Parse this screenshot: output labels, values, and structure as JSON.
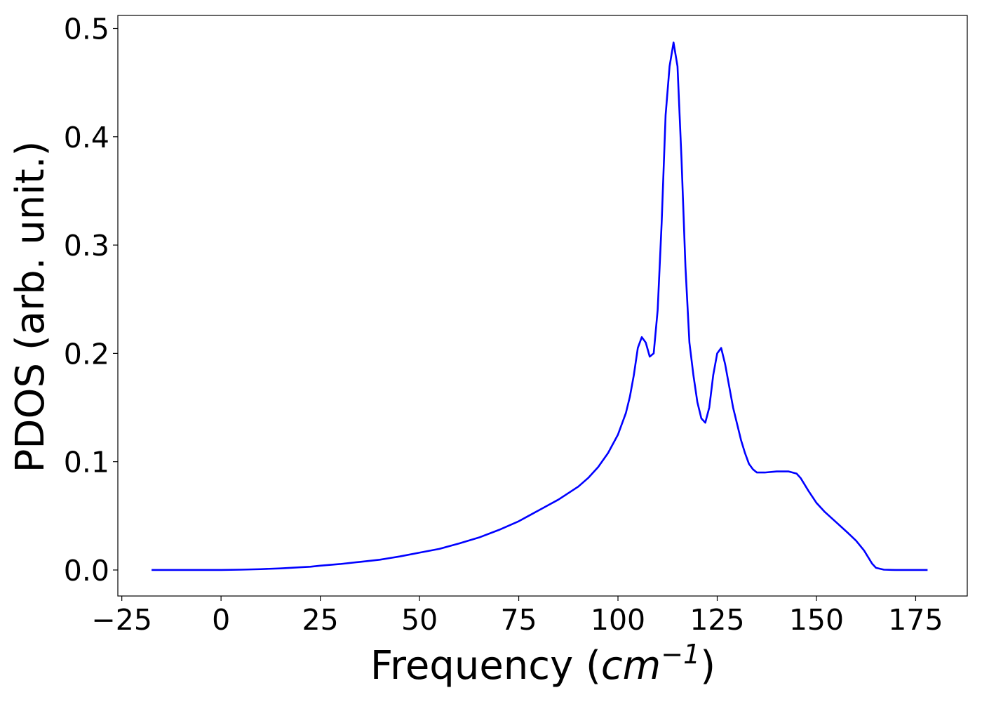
{
  "chart_data": {
    "type": "line",
    "title": "",
    "xlabel_parts": {
      "prefix": "Frequency (",
      "unit_base": "cm",
      "unit_exp": "−1",
      "suffix": ")"
    },
    "ylabel": "PDOS (arb. unit.)",
    "xlim": [
      -26,
      188
    ],
    "ylim": [
      -0.024,
      0.512
    ],
    "xticks": [
      {
        "value": -25,
        "label": "−25"
      },
      {
        "value": 0,
        "label": "0"
      },
      {
        "value": 25,
        "label": "25"
      },
      {
        "value": 50,
        "label": "50"
      },
      {
        "value": 75,
        "label": "75"
      },
      {
        "value": 100,
        "label": "100"
      },
      {
        "value": 125,
        "label": "125"
      },
      {
        "value": 150,
        "label": "150"
      },
      {
        "value": 175,
        "label": "175"
      }
    ],
    "yticks": [
      {
        "value": 0.0,
        "label": "0.0"
      },
      {
        "value": 0.1,
        "label": "0.1"
      },
      {
        "value": 0.2,
        "label": "0.2"
      },
      {
        "value": 0.3,
        "label": "0.3"
      },
      {
        "value": 0.4,
        "label": "0.4"
      },
      {
        "value": 0.5,
        "label": "0.5"
      }
    ],
    "grid": false,
    "series": [
      {
        "color": "#0000ff",
        "x": [
          -17.5,
          0,
          5,
          10,
          15,
          20,
          22.5,
          25,
          30,
          35,
          40,
          42.5,
          45,
          50,
          55,
          57.5,
          60,
          65,
          70,
          75,
          77.5,
          80,
          82.5,
          85,
          90,
          92.5,
          95,
          97.5,
          100,
          102,
          103,
          104,
          105,
          106,
          107,
          108,
          109,
          110,
          111,
          112,
          113,
          114,
          115,
          116,
          117,
          118,
          119,
          120,
          121,
          122,
          123,
          124,
          125,
          126,
          127,
          128,
          129,
          130,
          131,
          132,
          133,
          134,
          135,
          136,
          137,
          140,
          143,
          145,
          146,
          148,
          150,
          152,
          155,
          158,
          160,
          162,
          163,
          164,
          165,
          167,
          170,
          178
        ],
        "y": [
          0.0,
          0.0,
          0.0003,
          0.0008,
          0.0015,
          0.0025,
          0.003,
          0.004,
          0.0055,
          0.0075,
          0.0095,
          0.011,
          0.0125,
          0.016,
          0.0195,
          0.022,
          0.0245,
          0.03,
          0.037,
          0.045,
          0.05,
          0.055,
          0.06,
          0.065,
          0.077,
          0.085,
          0.095,
          0.108,
          0.125,
          0.145,
          0.16,
          0.18,
          0.205,
          0.215,
          0.21,
          0.197,
          0.2,
          0.24,
          0.32,
          0.42,
          0.465,
          0.487,
          0.465,
          0.38,
          0.28,
          0.21,
          0.18,
          0.155,
          0.14,
          0.136,
          0.15,
          0.18,
          0.2,
          0.205,
          0.19,
          0.17,
          0.15,
          0.135,
          0.12,
          0.108,
          0.098,
          0.093,
          0.09,
          0.09,
          0.09,
          0.091,
          0.091,
          0.089,
          0.085,
          0.073,
          0.062,
          0.054,
          0.044,
          0.034,
          0.027,
          0.018,
          0.012,
          0.006,
          0.002,
          0.0003,
          0.0,
          0.0
        ]
      }
    ]
  }
}
